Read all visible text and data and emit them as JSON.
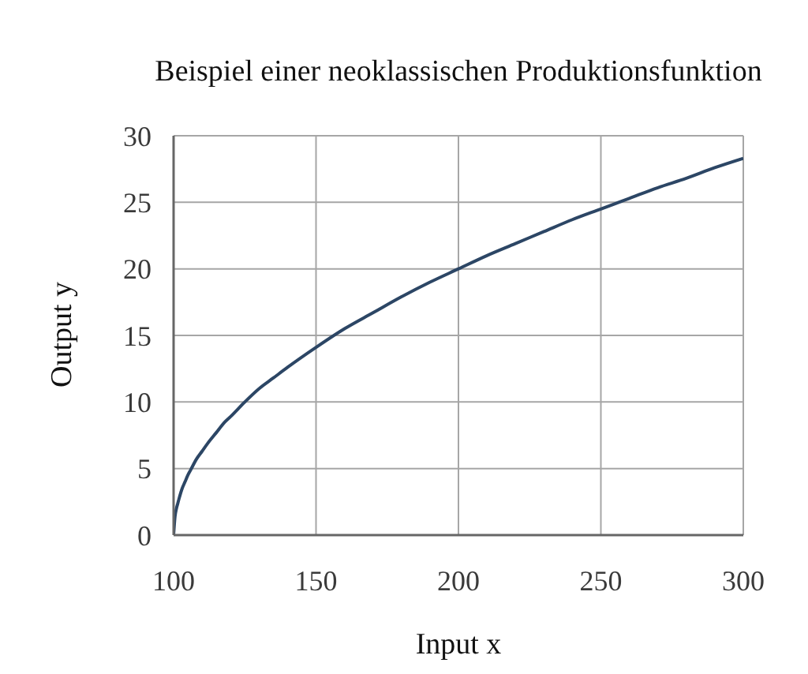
{
  "chart_data": {
    "type": "line",
    "title": "Beispiel einer neoklassischen Produktionsfunktion",
    "xlabel": "Input x",
    "ylabel": "Output y",
    "x": [
      100,
      100.5,
      101,
      101.5,
      102,
      103,
      104,
      105,
      106,
      108,
      110,
      112,
      115,
      118,
      120,
      125,
      130,
      135,
      140,
      150,
      160,
      170,
      180,
      190,
      200,
      210,
      220,
      230,
      240,
      250,
      260,
      270,
      280,
      290,
      300
    ],
    "series": [
      {
        "color": "#2c4665",
        "values": [
          0,
          1.4,
          2.0,
          2.4,
          2.8,
          3.5,
          4.0,
          4.5,
          4.9,
          5.7,
          6.3,
          6.9,
          7.7,
          8.5,
          8.9,
          10.0,
          11.0,
          11.8,
          12.6,
          14.1,
          15.5,
          16.7,
          17.9,
          19.0,
          20.0,
          21.0,
          21.9,
          22.8,
          23.7,
          24.5,
          25.3,
          26.1,
          26.8,
          27.6,
          28.3
        ]
      }
    ],
    "xlim": [
      100,
      300
    ],
    "xticks": [
      100,
      150,
      200,
      250,
      300
    ],
    "ylim": [
      0,
      30
    ],
    "yticks": [
      0,
      5,
      10,
      15,
      20,
      25,
      30
    ],
    "grid": true,
    "line_style": "solid"
  }
}
